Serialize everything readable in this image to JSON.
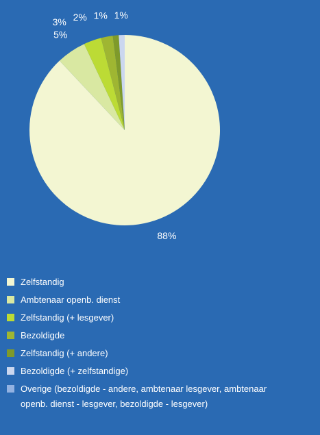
{
  "chart_data": {
    "type": "pie",
    "categories": [
      "Zelfstandig",
      "Ambtenaar openb. dienst",
      "Zelfstandig (+ lesgever)",
      "Bezoldigde",
      "Zelfstandig (+ andere)",
      "Bezoldigde (+ zelfstandige)",
      "Overige (bezoldigde - andere, ambtenaar lesgever, ambtenaar openb. dienst - lesgever, bezoldigde - lesgever)"
    ],
    "values": [
      88,
      5,
      3,
      2,
      1,
      1,
      0
    ],
    "value_labels": [
      "88%",
      "5%",
      "3%",
      "2%",
      "1%",
      "1%",
      null
    ],
    "colors": [
      "#f3f6d2",
      "#d9e8a2",
      "#bcdb35",
      "#9fb632",
      "#7f9a2a",
      "#cbd7ef",
      "#92b2e2"
    ],
    "legend": "bottom"
  }
}
